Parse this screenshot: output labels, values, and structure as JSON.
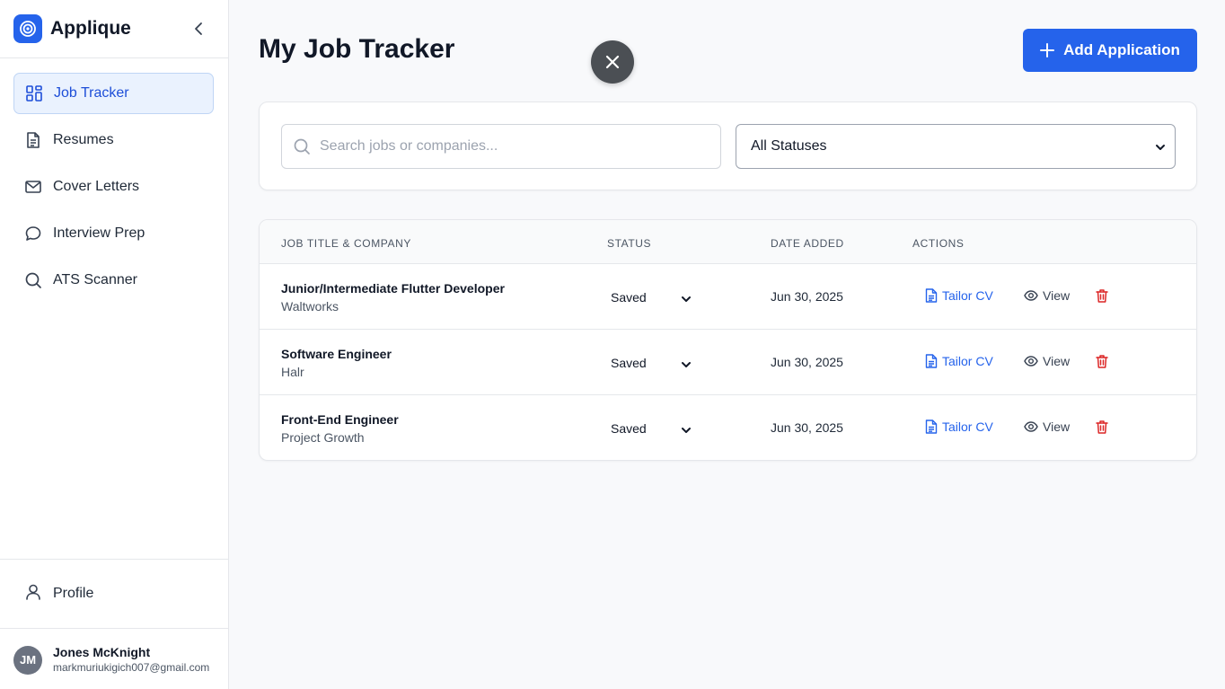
{
  "app": {
    "name": "Applique"
  },
  "colors": {
    "accent": "#2563eb",
    "danger": "#dc2626",
    "active_bg": "#eaf2fe"
  },
  "sidebar": {
    "items": [
      {
        "label": "Job Tracker",
        "icon": "grid-icon",
        "active": true
      },
      {
        "label": "Resumes",
        "icon": "document-icon",
        "active": false
      },
      {
        "label": "Cover Letters",
        "icon": "mail-icon",
        "active": false
      },
      {
        "label": "Interview Prep",
        "icon": "chat-icon",
        "active": false
      },
      {
        "label": "ATS Scanner",
        "icon": "search-icon",
        "active": false
      }
    ],
    "profile_label": "Profile"
  },
  "user": {
    "initials": "JM",
    "name": "Jones McKnight",
    "email": "markmuriukigich007@gmail.com"
  },
  "header": {
    "title": "My Job Tracker",
    "add_button_label": "Add Application"
  },
  "filters": {
    "search_placeholder": "Search jobs or companies...",
    "search_value": "",
    "status_selected": "All Statuses"
  },
  "table": {
    "columns": [
      "JOB TITLE & COMPANY",
      "STATUS",
      "DATE ADDED",
      "ACTIONS"
    ],
    "rows": [
      {
        "title": "Junior/Intermediate Flutter Developer",
        "company": "Waltworks",
        "status": "Saved",
        "date": "Jun 30, 2025"
      },
      {
        "title": "Software Engineer",
        "company": "Halr",
        "status": "Saved",
        "date": "Jun 30, 2025"
      },
      {
        "title": "Front-End Engineer",
        "company": "Project Growth",
        "status": "Saved",
        "date": "Jun 30, 2025"
      }
    ],
    "actions": {
      "tailor_label": "Tailor CV",
      "view_label": "View"
    }
  }
}
